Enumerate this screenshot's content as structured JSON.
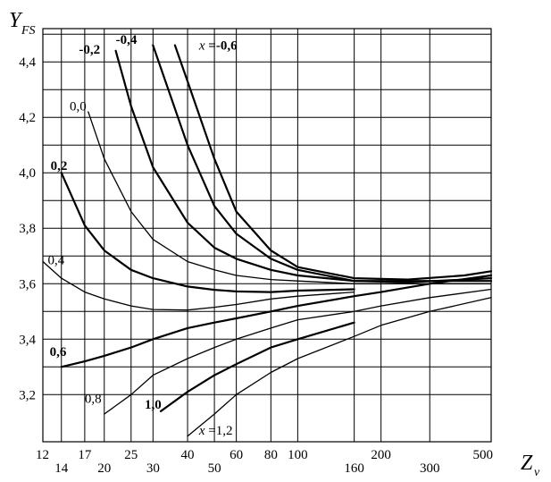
{
  "chart_data": {
    "type": "line",
    "ylabel": "Y",
    "ylabel_sub": "FS",
    "xlabel": "Z",
    "xlabel_sub": "v",
    "ylim": [
      3.03,
      4.52
    ],
    "x_scale": "log",
    "grid": true,
    "y_ticks": [
      "3,2",
      "3,4",
      "3,6",
      "3,8",
      "4,0",
      "4,2",
      "4,4"
    ],
    "y_tick_values": [
      3.2,
      3.4,
      3.6,
      3.8,
      4.0,
      4.2,
      4.4
    ],
    "x_tick_labels": [
      "12",
      "14",
      "17",
      "20",
      "25",
      "30",
      "40",
      "50",
      "60",
      "80",
      "100",
      "160",
      "200",
      "300",
      "500"
    ],
    "x_gridlines": [
      12,
      14,
      17,
      20,
      25,
      30,
      40,
      50,
      60,
      80,
      100,
      160,
      200,
      300,
      500
    ],
    "series": [
      {
        "name": "x = -0,6",
        "label": "x =-0,6",
        "label_x_italic": true,
        "bold": true,
        "label_at": [
          44,
          4.445
        ],
        "points": [
          [
            36,
            4.46
          ],
          [
            40,
            4.33
          ],
          [
            50,
            4.05
          ],
          [
            60,
            3.86
          ],
          [
            80,
            3.72
          ],
          [
            100,
            3.66
          ],
          [
            160,
            3.62
          ],
          [
            250,
            3.615
          ],
          [
            400,
            3.63
          ],
          [
            500,
            3.645
          ]
        ]
      },
      {
        "name": "x = -0,4",
        "label": "-0,4",
        "bold": true,
        "label_at": [
          22,
          4.465
        ],
        "points": [
          [
            30,
            4.46
          ],
          [
            40,
            4.1
          ],
          [
            50,
            3.88
          ],
          [
            60,
            3.78
          ],
          [
            80,
            3.69
          ],
          [
            100,
            3.65
          ],
          [
            160,
            3.61
          ],
          [
            250,
            3.605
          ],
          [
            400,
            3.615
          ],
          [
            500,
            3.62
          ]
        ]
      },
      {
        "name": "x = -0,2",
        "label": "-0,2",
        "bold": true,
        "label_at": [
          16.2,
          4.43
        ],
        "points": [
          [
            22,
            4.44
          ],
          [
            25,
            4.24
          ],
          [
            30,
            4.02
          ],
          [
            40,
            3.82
          ],
          [
            50,
            3.73
          ],
          [
            60,
            3.69
          ],
          [
            80,
            3.65
          ],
          [
            100,
            3.63
          ],
          [
            160,
            3.61
          ],
          [
            500,
            3.61
          ]
        ]
      },
      {
        "name": "x = 0,0",
        "label": "0,0",
        "bold": false,
        "label_at": [
          15.0,
          4.225
        ],
        "points": [
          [
            17.5,
            4.22
          ],
          [
            20,
            4.05
          ],
          [
            25,
            3.86
          ],
          [
            30,
            3.76
          ],
          [
            40,
            3.68
          ],
          [
            50,
            3.65
          ],
          [
            60,
            3.63
          ],
          [
            80,
            3.615
          ],
          [
            100,
            3.61
          ],
          [
            160,
            3.6
          ],
          [
            500,
            3.6
          ]
        ]
      },
      {
        "name": "x = 0,2",
        "label": "0,2",
        "bold": true,
        "label_at": [
          12.8,
          4.01
        ],
        "points": [
          [
            14,
            4.0
          ],
          [
            17,
            3.81
          ],
          [
            20,
            3.72
          ],
          [
            25,
            3.65
          ],
          [
            30,
            3.62
          ],
          [
            40,
            3.59
          ],
          [
            50,
            3.578
          ],
          [
            60,
            3.572
          ],
          [
            80,
            3.57
          ],
          [
            100,
            3.575
          ],
          [
            160,
            3.58
          ]
        ]
      },
      {
        "name": "x = 0,4",
        "label": "0,4",
        "bold": false,
        "label_at": [
          12.5,
          3.67
        ],
        "points": [
          [
            12,
            3.68
          ],
          [
            14,
            3.62
          ],
          [
            17,
            3.57
          ],
          [
            20,
            3.545
          ],
          [
            25,
            3.52
          ],
          [
            30,
            3.507
          ],
          [
            40,
            3.505
          ],
          [
            50,
            3.515
          ],
          [
            60,
            3.525
          ],
          [
            80,
            3.545
          ],
          [
            100,
            3.555
          ],
          [
            160,
            3.57
          ]
        ]
      },
      {
        "name": "x = 0,6",
        "label": "0,6",
        "bold": true,
        "label_at": [
          12.7,
          3.34
        ],
        "points": [
          [
            14,
            3.3
          ],
          [
            17,
            3.32
          ],
          [
            20,
            3.34
          ],
          [
            25,
            3.37
          ],
          [
            30,
            3.4
          ],
          [
            40,
            3.44
          ],
          [
            50,
            3.46
          ],
          [
            60,
            3.475
          ],
          [
            80,
            3.5
          ],
          [
            100,
            3.52
          ],
          [
            160,
            3.555
          ],
          [
            200,
            3.57
          ],
          [
            300,
            3.6
          ],
          [
            500,
            3.63
          ]
        ]
      },
      {
        "name": "x = 0,8",
        "label": "0,8",
        "bold": false,
        "label_at": [
          17.0,
          3.17
        ],
        "points": [
          [
            20,
            3.13
          ],
          [
            25,
            3.2
          ],
          [
            30,
            3.27
          ],
          [
            40,
            3.33
          ],
          [
            50,
            3.37
          ],
          [
            60,
            3.4
          ],
          [
            80,
            3.44
          ],
          [
            100,
            3.47
          ],
          [
            160,
            3.5
          ],
          [
            200,
            3.52
          ],
          [
            300,
            3.55
          ],
          [
            500,
            3.58
          ]
        ]
      },
      {
        "name": "x = 1,0",
        "label": "1,0",
        "bold": true,
        "label_at": [
          28.0,
          3.15
        ],
        "points": [
          [
            32,
            3.14
          ],
          [
            40,
            3.21
          ],
          [
            50,
            3.27
          ],
          [
            60,
            3.31
          ],
          [
            80,
            3.37
          ],
          [
            100,
            3.4
          ],
          [
            160,
            3.46
          ]
        ]
      },
      {
        "name": "x = 1,2",
        "label": "x =1,2",
        "label_x_italic": true,
        "bold": false,
        "label_at": [
          44,
          3.055
        ],
        "points": [
          [
            40,
            3.05
          ],
          [
            50,
            3.13
          ],
          [
            60,
            3.2
          ],
          [
            80,
            3.28
          ],
          [
            100,
            3.33
          ],
          [
            160,
            3.41
          ],
          [
            200,
            3.45
          ],
          [
            300,
            3.5
          ],
          [
            500,
            3.55
          ]
        ]
      }
    ]
  }
}
